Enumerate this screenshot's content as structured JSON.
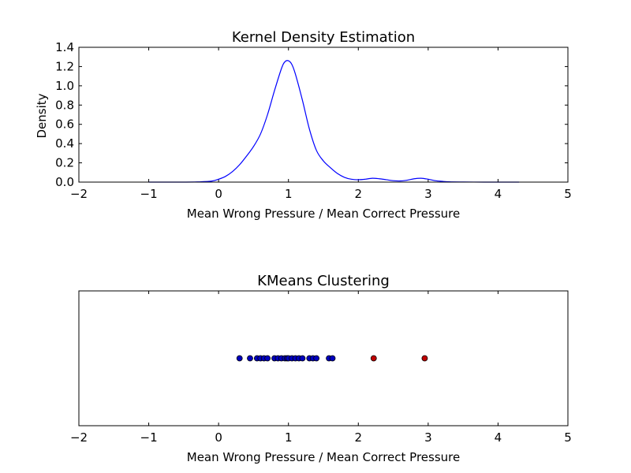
{
  "chart_data": [
    {
      "type": "line",
      "title": "Kernel Density Estimation",
      "xlabel": "Mean Wrong Pressure / Mean Correct Pressure",
      "ylabel": "Density",
      "xlim": [
        -2,
        5
      ],
      "ylim": [
        0,
        1.4
      ],
      "x_ticks": [
        "−2",
        "−1",
        "0",
        "1",
        "2",
        "3",
        "4",
        "5"
      ],
      "x_tick_values": [
        -2,
        -1,
        0,
        1,
        2,
        3,
        4,
        5
      ],
      "y_ticks": [
        "0.0",
        "0.2",
        "0.4",
        "0.6",
        "0.8",
        "1.0",
        "1.2",
        "1.4"
      ],
      "y_tick_values": [
        0,
        0.2,
        0.4,
        0.6,
        0.8,
        1.0,
        1.2,
        1.4
      ],
      "grid": false,
      "series": [
        {
          "color": "#0000ff",
          "x": [
            -1.0,
            -0.6,
            -0.3,
            -0.1,
            0.0,
            0.1,
            0.2,
            0.3,
            0.4,
            0.5,
            0.6,
            0.7,
            0.8,
            0.9,
            0.95,
            1.0,
            1.05,
            1.1,
            1.2,
            1.3,
            1.4,
            1.5,
            1.6,
            1.7,
            1.8,
            1.9,
            2.0,
            2.1,
            2.2,
            2.3,
            2.4,
            2.5,
            2.6,
            2.7,
            2.8,
            2.9,
            3.0,
            3.1,
            3.2,
            3.3,
            3.5,
            3.8,
            4.0,
            4.3
          ],
          "y": [
            0.0,
            0.0,
            0.002,
            0.01,
            0.03,
            0.06,
            0.11,
            0.18,
            0.27,
            0.37,
            0.5,
            0.7,
            0.95,
            1.18,
            1.25,
            1.26,
            1.22,
            1.12,
            0.85,
            0.55,
            0.33,
            0.22,
            0.15,
            0.09,
            0.05,
            0.03,
            0.025,
            0.03,
            0.04,
            0.035,
            0.025,
            0.015,
            0.012,
            0.02,
            0.035,
            0.04,
            0.03,
            0.015,
            0.008,
            0.003,
            0.001,
            0.0,
            0.0,
            0.0
          ]
        }
      ]
    },
    {
      "type": "scatter",
      "title": "KMeans Clustering",
      "xlabel": "Mean Wrong Pressure / Mean Correct Pressure",
      "xlim": [
        -2,
        5
      ],
      "x_ticks": [
        "−2",
        "−1",
        "0",
        "1",
        "2",
        "3",
        "4",
        "5"
      ],
      "x_tick_values": [
        -2,
        -1,
        0,
        1,
        2,
        3,
        4,
        5
      ],
      "y_ticks": [],
      "grid": false,
      "series": [
        {
          "color": "#0000bf",
          "x": [
            0.3,
            0.45,
            0.55,
            0.6,
            0.65,
            0.7,
            0.8,
            0.85,
            0.9,
            0.95,
            0.98,
            1.0,
            1.05,
            1.1,
            1.15,
            1.2,
            1.3,
            1.35,
            1.4,
            1.58,
            1.63
          ]
        },
        {
          "color": "#bf0000",
          "x": [
            2.22,
            2.95
          ]
        }
      ]
    }
  ]
}
